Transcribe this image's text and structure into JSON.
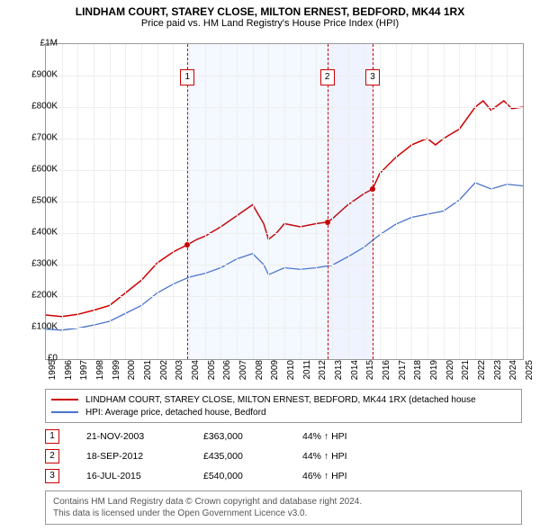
{
  "title": "LINDHAM COURT, STAREY CLOSE, MILTON ERNEST, BEDFORD, MK44 1RX",
  "subtitle": "Price paid vs. HM Land Registry's House Price Index (HPI)",
  "chart": {
    "type": "line",
    "xlim": [
      1995,
      2025
    ],
    "ylim": [
      0,
      1000000
    ],
    "ytick_step": 100000,
    "yticks": [
      "£0",
      "£100K",
      "£200K",
      "£300K",
      "£400K",
      "£500K",
      "£600K",
      "£700K",
      "£800K",
      "£900K",
      "£1M"
    ],
    "xticks": [
      "1995",
      "1996",
      "1997",
      "1998",
      "1999",
      "2000",
      "2001",
      "2002",
      "2003",
      "2004",
      "2005",
      "2006",
      "2007",
      "2008",
      "2009",
      "2010",
      "2011",
      "2012",
      "2013",
      "2014",
      "2015",
      "2016",
      "2017",
      "2018",
      "2019",
      "2020",
      "2021",
      "2022",
      "2023",
      "2024",
      "2025"
    ],
    "background_color": "#ffffff",
    "grid_color": "#eeeeee",
    "xlabel_fontsize": 10,
    "ylabel_fontsize": 10,
    "shade_ranges": [
      {
        "x0": 2003.9,
        "x1": 2012.7,
        "color": "rgba(100,150,255,0.07)"
      },
      {
        "x0": 2012.7,
        "x1": 2015.55,
        "color": "rgba(100,150,255,0.11)"
      }
    ],
    "markers": [
      {
        "n": "1",
        "x": 2003.9,
        "color": "#cc0000",
        "box_top": 28
      },
      {
        "n": "2",
        "x": 2012.7,
        "color": "#cc0000",
        "box_top": 28
      },
      {
        "n": "3",
        "x": 2015.55,
        "color": "#cc0000",
        "box_top": 28
      }
    ],
    "series": [
      {
        "name": "subject",
        "label": "LINDHAM COURT, STAREY CLOSE, MILTON ERNEST, BEDFORD, MK44 1RX (detached house",
        "color": "#cc0000",
        "line_width": 1.5,
        "points": [
          [
            1995,
            140000
          ],
          [
            1996,
            135000
          ],
          [
            1997,
            142000
          ],
          [
            1998,
            155000
          ],
          [
            1999,
            170000
          ],
          [
            2000,
            210000
          ],
          [
            2001,
            250000
          ],
          [
            2002,
            305000
          ],
          [
            2003,
            340000
          ],
          [
            2003.9,
            363000
          ],
          [
            2004.5,
            380000
          ],
          [
            2005,
            390000
          ],
          [
            2006,
            420000
          ],
          [
            2007,
            455000
          ],
          [
            2008,
            490000
          ],
          [
            2008.7,
            430000
          ],
          [
            2009,
            380000
          ],
          [
            2009.5,
            400000
          ],
          [
            2010,
            430000
          ],
          [
            2011,
            420000
          ],
          [
            2012,
            430000
          ],
          [
            2012.7,
            435000
          ],
          [
            2013,
            445000
          ],
          [
            2014,
            490000
          ],
          [
            2015,
            525000
          ],
          [
            2015.55,
            540000
          ],
          [
            2016,
            590000
          ],
          [
            2017,
            640000
          ],
          [
            2018,
            680000
          ],
          [
            2018.7,
            695000
          ],
          [
            2019,
            700000
          ],
          [
            2019.5,
            680000
          ],
          [
            2020,
            700000
          ],
          [
            2021,
            730000
          ],
          [
            2022,
            800000
          ],
          [
            2022.5,
            820000
          ],
          [
            2023,
            790000
          ],
          [
            2023.8,
            820000
          ],
          [
            2024.3,
            795000
          ],
          [
            2025,
            800000
          ]
        ],
        "dots": [
          {
            "x": 2003.9,
            "y": 363000
          },
          {
            "x": 2012.7,
            "y": 435000
          },
          {
            "x": 2015.55,
            "y": 540000
          }
        ]
      },
      {
        "name": "hpi",
        "label": "HPI: Average price, detached house, Bedford",
        "color": "#4a74c9",
        "line_width": 1.3,
        "points": [
          [
            1995,
            95000
          ],
          [
            1996,
            92000
          ],
          [
            1997,
            98000
          ],
          [
            1998,
            108000
          ],
          [
            1999,
            120000
          ],
          [
            2000,
            145000
          ],
          [
            2001,
            170000
          ],
          [
            2002,
            210000
          ],
          [
            2003,
            238000
          ],
          [
            2004,
            260000
          ],
          [
            2005,
            272000
          ],
          [
            2006,
            290000
          ],
          [
            2007,
            318000
          ],
          [
            2008,
            335000
          ],
          [
            2008.7,
            300000
          ],
          [
            2009,
            268000
          ],
          [
            2010,
            290000
          ],
          [
            2011,
            285000
          ],
          [
            2012,
            290000
          ],
          [
            2013,
            298000
          ],
          [
            2014,
            325000
          ],
          [
            2015,
            355000
          ],
          [
            2016,
            395000
          ],
          [
            2017,
            428000
          ],
          [
            2018,
            450000
          ],
          [
            2019,
            460000
          ],
          [
            2020,
            470000
          ],
          [
            2021,
            505000
          ],
          [
            2022,
            560000
          ],
          [
            2023,
            540000
          ],
          [
            2024,
            555000
          ],
          [
            2025,
            550000
          ]
        ],
        "dots": []
      }
    ]
  },
  "legend": {
    "items": [
      {
        "color": "#cc0000",
        "label": "LINDHAM COURT, STAREY CLOSE, MILTON ERNEST, BEDFORD, MK44 1RX (detached house"
      },
      {
        "color": "#4a74c9",
        "label": "HPI: Average price, detached house, Bedford"
      }
    ]
  },
  "events": [
    {
      "n": "1",
      "date": "21-NOV-2003",
      "price": "£363,000",
      "pct": "44% ↑ HPI"
    },
    {
      "n": "2",
      "date": "18-SEP-2012",
      "price": "£435,000",
      "pct": "44% ↑ HPI"
    },
    {
      "n": "3",
      "date": "16-JUL-2015",
      "price": "£540,000",
      "pct": "46% ↑ HPI"
    }
  ],
  "footer": {
    "line1": "Contains HM Land Registry data © Crown copyright and database right 2024.",
    "line2": "This data is licensed under the Open Government Licence v3.0."
  }
}
